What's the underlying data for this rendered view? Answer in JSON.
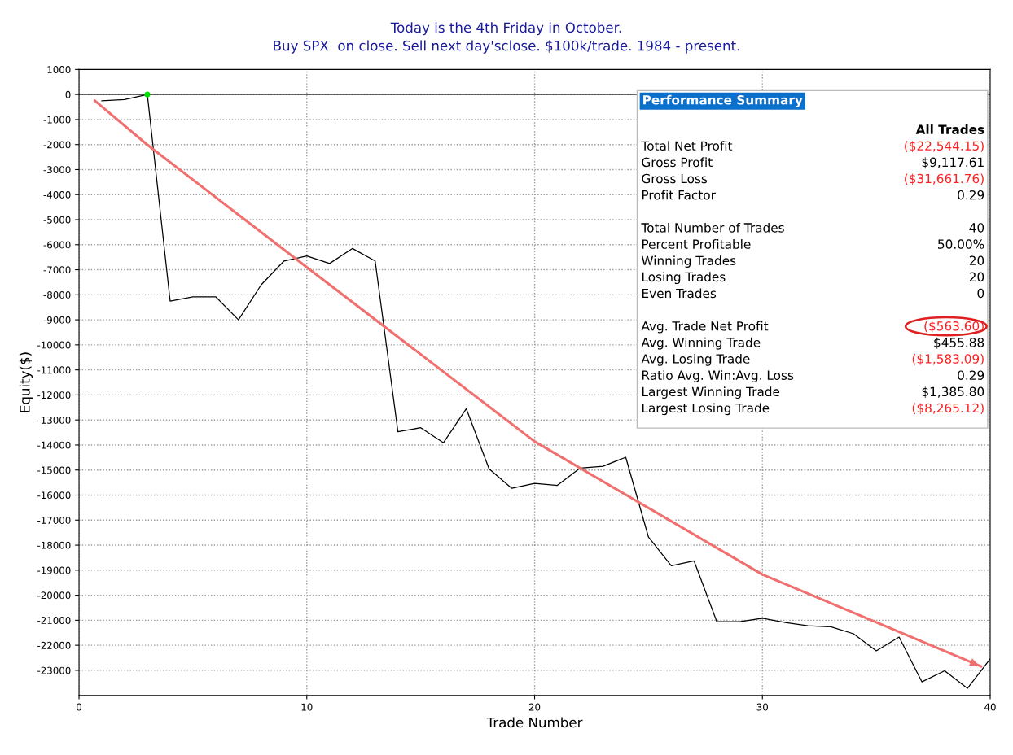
{
  "chart_data": {
    "type": "line",
    "title": "Today is the 4th Friday in October.",
    "subtitle": "Buy SPX  on close. Sell next day'sclose. $100k/trade. 1984 - present.",
    "xlabel": "Trade Number",
    "ylabel": "Equity($)",
    "xlim": [
      0,
      40
    ],
    "xticks": [
      0,
      10,
      20,
      30,
      40
    ],
    "ylim": [
      -24000,
      1000
    ],
    "yticks": [
      1000,
      0,
      -1000,
      -2000,
      -3000,
      -4000,
      -5000,
      -6000,
      -7000,
      -8000,
      -9000,
      -10000,
      -11000,
      -12000,
      -13000,
      -14000,
      -15000,
      -16000,
      -17000,
      -18000,
      -19000,
      -20000,
      -21000,
      -22000,
      -23000
    ],
    "grid": true,
    "line_style": "solid",
    "series": [
      {
        "color": "#000000",
        "x": [
          1,
          2,
          3,
          4,
          5,
          6,
          7,
          8,
          9,
          10,
          11,
          12,
          13,
          14,
          15,
          16,
          17,
          18,
          19,
          20,
          21,
          22,
          23,
          24,
          25,
          26,
          27,
          28,
          29,
          30,
          31,
          32,
          33,
          34,
          35,
          36,
          37,
          38,
          39,
          40
        ],
        "values": [
          -250,
          -200,
          0,
          -8250,
          -8080,
          -8080,
          -9000,
          -7600,
          -6650,
          -6450,
          -6750,
          -6150,
          -6650,
          -13470,
          -13310,
          -13910,
          -12550,
          -14950,
          -15730,
          -15530,
          -15610,
          -14920,
          -14850,
          -14490,
          -17680,
          -18820,
          -18630,
          -21060,
          -21060,
          -20920,
          -21090,
          -21220,
          -21260,
          -21540,
          -22220,
          -21670,
          -23460,
          -23020,
          -23720,
          -22540
        ]
      },
      {
        "type": "line",
        "color": "#f07070",
        "x": [
          0.7,
          3,
          10,
          20,
          30,
          39.6
        ],
        "values": [
          -250,
          -2010,
          -6900,
          -13860,
          -19170,
          -22840
        ]
      },
      {
        "type": "scatter",
        "color": "#00dd00",
        "x": [
          3
        ],
        "values": [
          0
        ]
      }
    ],
    "annotations": [
      "Performance Summary",
      "All Trades",
      "Total Net Profit",
      "($22,544.15)",
      "Gross Profit",
      "$9,117.61",
      "Gross Loss",
      "($31,661.76)",
      "Profit Factor",
      "0.29",
      "Total Number of Trades",
      "40",
      "Percent Profitable",
      "50.00%",
      "Winning Trades",
      "20",
      "Losing Trades",
      "20",
      "Even Trades",
      "0",
      "Avg. Trade Net Profit",
      "($563.60)",
      "Avg. Winning Trade",
      "$455.88",
      "Avg. Losing Trade",
      "($1,583.09)",
      "Ratio Avg. Win:Avg. Loss",
      "0.29",
      "Largest Winning Trade",
      "$1,385.80",
      "Largest Losing Trade",
      "($8,265.12)"
    ]
  }
}
